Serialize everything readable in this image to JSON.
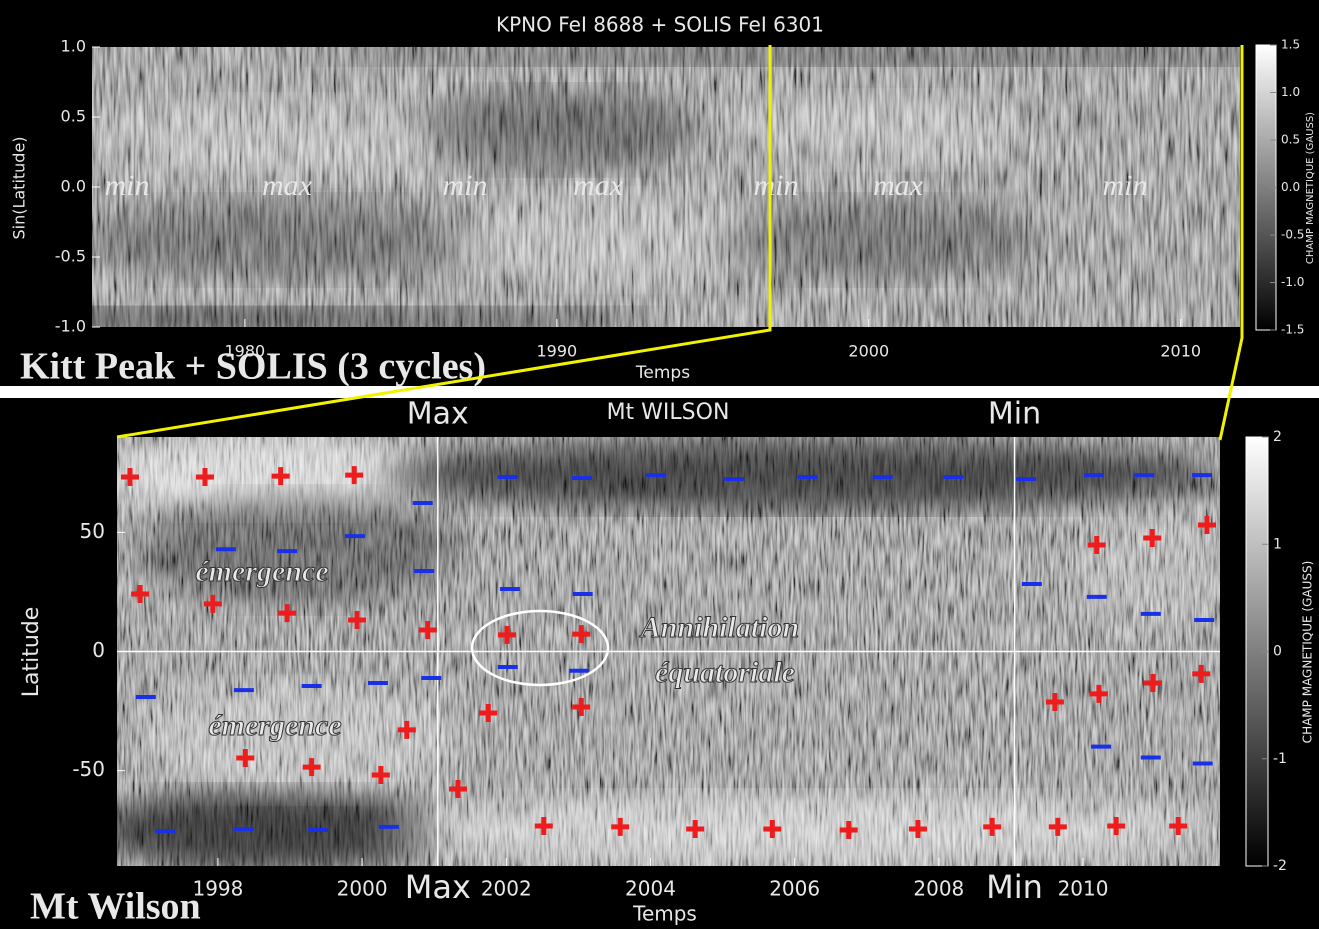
{
  "chart_data": [
    {
      "type": "heatmap",
      "title": "KPNO FeI 8688 + SOLIS FeI 6301",
      "xlabel": "Temps",
      "ylabel": "Sin(Latitude)",
      "caption": "Kitt Peak + SOLIS (3 cycles)",
      "xlim": [
        1975.1,
        2011.9
      ],
      "xticks": [
        1980,
        1990,
        2000,
        2010
      ],
      "ylim": [
        -1,
        1
      ],
      "yticks": [
        {
          "value": 1,
          "label": "1.0"
        },
        {
          "value": 0.5,
          "label": "0.5"
        },
        {
          "value": 0,
          "label": "0.0"
        },
        {
          "value": -0.5,
          "label": "-0.5"
        },
        {
          "value": -1,
          "label": "-1.0"
        }
      ],
      "annotations": [
        "min",
        "max",
        "min",
        "max",
        "min",
        "max",
        "min"
      ],
      "colorbar": {
        "label": "CHAMP MAGNETIQUE (GAUSS)",
        "lim": [
          -1.5,
          1.5
        ],
        "ticks": [
          {
            "value": 1.5,
            "label": "1.5"
          },
          {
            "value": 1,
            "label": "1.0"
          },
          {
            "value": 0.5,
            "label": "0.5"
          },
          {
            "value": 0,
            "label": "0.0"
          },
          {
            "value": -0.5,
            "label": "-0.5"
          },
          {
            "value": -1,
            "label": "-1.0"
          },
          {
            "value": -1.5,
            "label": "-1.5"
          }
        ]
      }
    },
    {
      "type": "heatmap",
      "title": "Mt WILSON",
      "xlabel": "Temps",
      "ylabel": "Latitude",
      "caption": "Mt Wilson",
      "xlim": [
        1996.6,
        2011.9
      ],
      "xticks": [
        1998,
        2000,
        2002,
        2004,
        2006,
        2008,
        2010
      ],
      "ylim": [
        -90,
        90
      ],
      "yticks": [
        50,
        0,
        -50
      ],
      "vlines": [
        2001.05,
        2009.05
      ],
      "vline_labels_top": [
        "Max",
        "Min"
      ],
      "vline_labels_bottom": [
        "Max",
        "Min"
      ],
      "hlines": [
        0
      ],
      "annotations": [
        "émergence",
        "émergence",
        "Annihilation",
        "équatoriale"
      ],
      "series": [
        {
          "marker": "plus",
          "color": "#ee1c1c",
          "x": [
            1996.78,
            1997.82,
            1998.87,
            1999.89,
            1996.92,
            1997.93,
            1998.96,
            1999.93,
            2000.91,
            2002.01,
            2003.04,
            2010.19,
            2010.96,
            2011.72,
            1998.38,
            1999.3,
            2000.26,
            2001.33,
            2000.62,
            2001.75,
            2003.04,
            2009.61,
            2010.22,
            2010.97,
            2011.64,
            2002.52,
            2003.58,
            2004.62,
            2005.69,
            2006.75,
            2007.71,
            2008.74,
            2009.65,
            2010.46,
            2011.32
          ],
          "values": [
            73.2,
            73.2,
            73.6,
            74.0,
            24.1,
            20.0,
            16.1,
            13.2,
            9.0,
            7.0,
            7.3,
            44.7,
            47.6,
            53.1,
            -44.7,
            -48.5,
            -51.8,
            -57.7,
            -32.9,
            -25.8,
            -23.3,
            -21.2,
            -17.8,
            -13.2,
            -9.4,
            -73.2,
            -73.6,
            -74.5,
            -74.5,
            -74.9,
            -74.5,
            -73.6,
            -73.6,
            -73.2,
            -73.2
          ]
        },
        {
          "marker": "minus",
          "color": "#1a30e6",
          "x": [
            1997.27,
            1998.36,
            1999.39,
            2000.37,
            2000.84,
            1998.11,
            1998.96,
            1999.9,
            2000.86,
            2002.02,
            2003.05,
            2004.08,
            2005.16,
            2006.18,
            2007.22,
            2008.2,
            2009.21,
            2010.15,
            2010.85,
            2011.65,
            2002.05,
            2003.06,
            2009.29,
            2010.19,
            2010.94,
            2011.68,
            1997.0,
            1998.36,
            1999.3,
            2000.22,
            2000.96,
            2002.02,
            2003.01,
            2010.25,
            2010.94,
            2011.66
          ],
          "values": [
            -75.3,
            -74.5,
            -74.9,
            -73.6,
            62.3,
            42.9,
            42.1,
            48.4,
            33.8,
            73.2,
            72.8,
            74.0,
            72.4,
            73.2,
            73.2,
            73.2,
            72.4,
            74.0,
            74.0,
            74.0,
            26.2,
            24.1,
            28.3,
            22.9,
            15.8,
            13.2,
            -19.1,
            -16.2,
            -14.5,
            -13.2,
            -11.1,
            -6.5,
            -8.1,
            -39.9,
            -44.5,
            -47.0
          ]
        }
      ],
      "colorbar": {
        "label": "CHAMP MAGNETIQUE (GAUSS)",
        "lim": [
          -2,
          2
        ],
        "ticks": [
          2,
          1,
          0,
          -1,
          -2
        ]
      }
    }
  ]
}
